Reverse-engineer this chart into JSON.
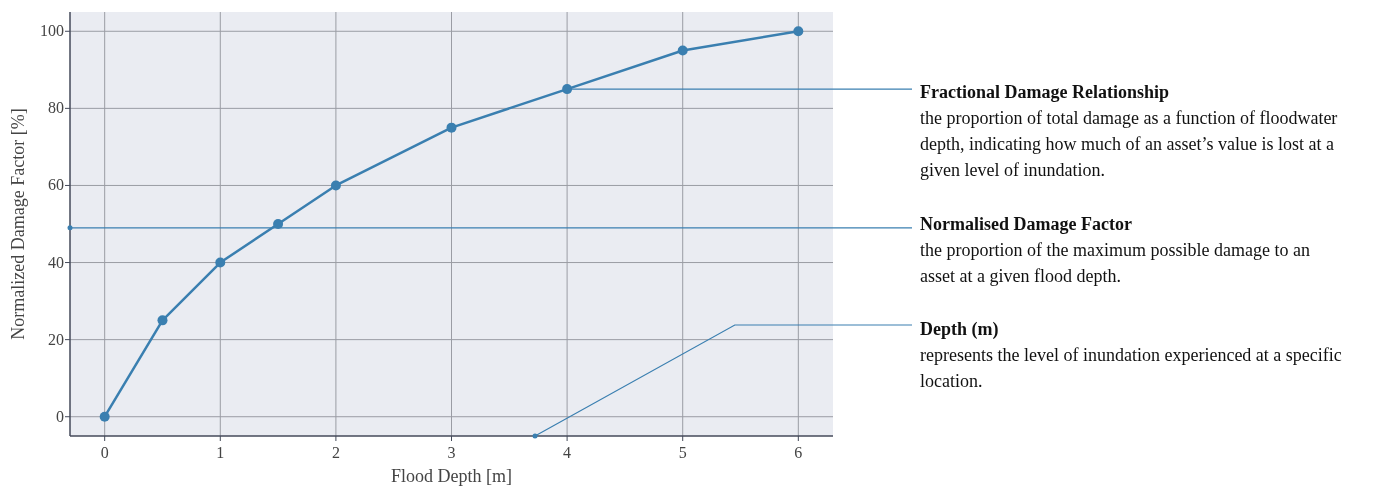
{
  "chart_data": {
    "type": "line",
    "xlabel": "Flood Depth [m]",
    "ylabel": "Normalized Damage Factor [%]",
    "x": [
      0,
      0.5,
      1,
      1.5,
      2,
      3,
      4,
      5,
      6
    ],
    "series": [
      {
        "color": "#3a7fb0",
        "values": [
          0,
          25,
          40,
          50,
          60,
          75,
          85,
          95,
          100
        ]
      }
    ],
    "xlim": [
      -0.3,
      6.3
    ],
    "xticks": [
      0,
      1,
      2,
      3,
      4,
      5,
      6
    ],
    "ylim": [
      -5,
      105
    ],
    "yticks": [
      0,
      20,
      40,
      60,
      80,
      100
    ],
    "grid": true,
    "marker": "circle",
    "line_style": "solid",
    "ref_lines": [
      {
        "axis": "y",
        "value": 49,
        "color": "#3a7fb0"
      }
    ],
    "annotations": [
      {
        "text": "Fractional Damage Relationship",
        "x": 4,
        "y": 85
      },
      "the proportion of total damage as a function of floodwater depth, indicating how much of an asset’s value is lost at a given level of inundation.",
      "Normalised Damage Factor",
      "the proportion of the maximum possible damage to an asset at a given flood depth.",
      "Depth (m)",
      "represents the level of inundation experienced at a specific location."
    ]
  }
}
